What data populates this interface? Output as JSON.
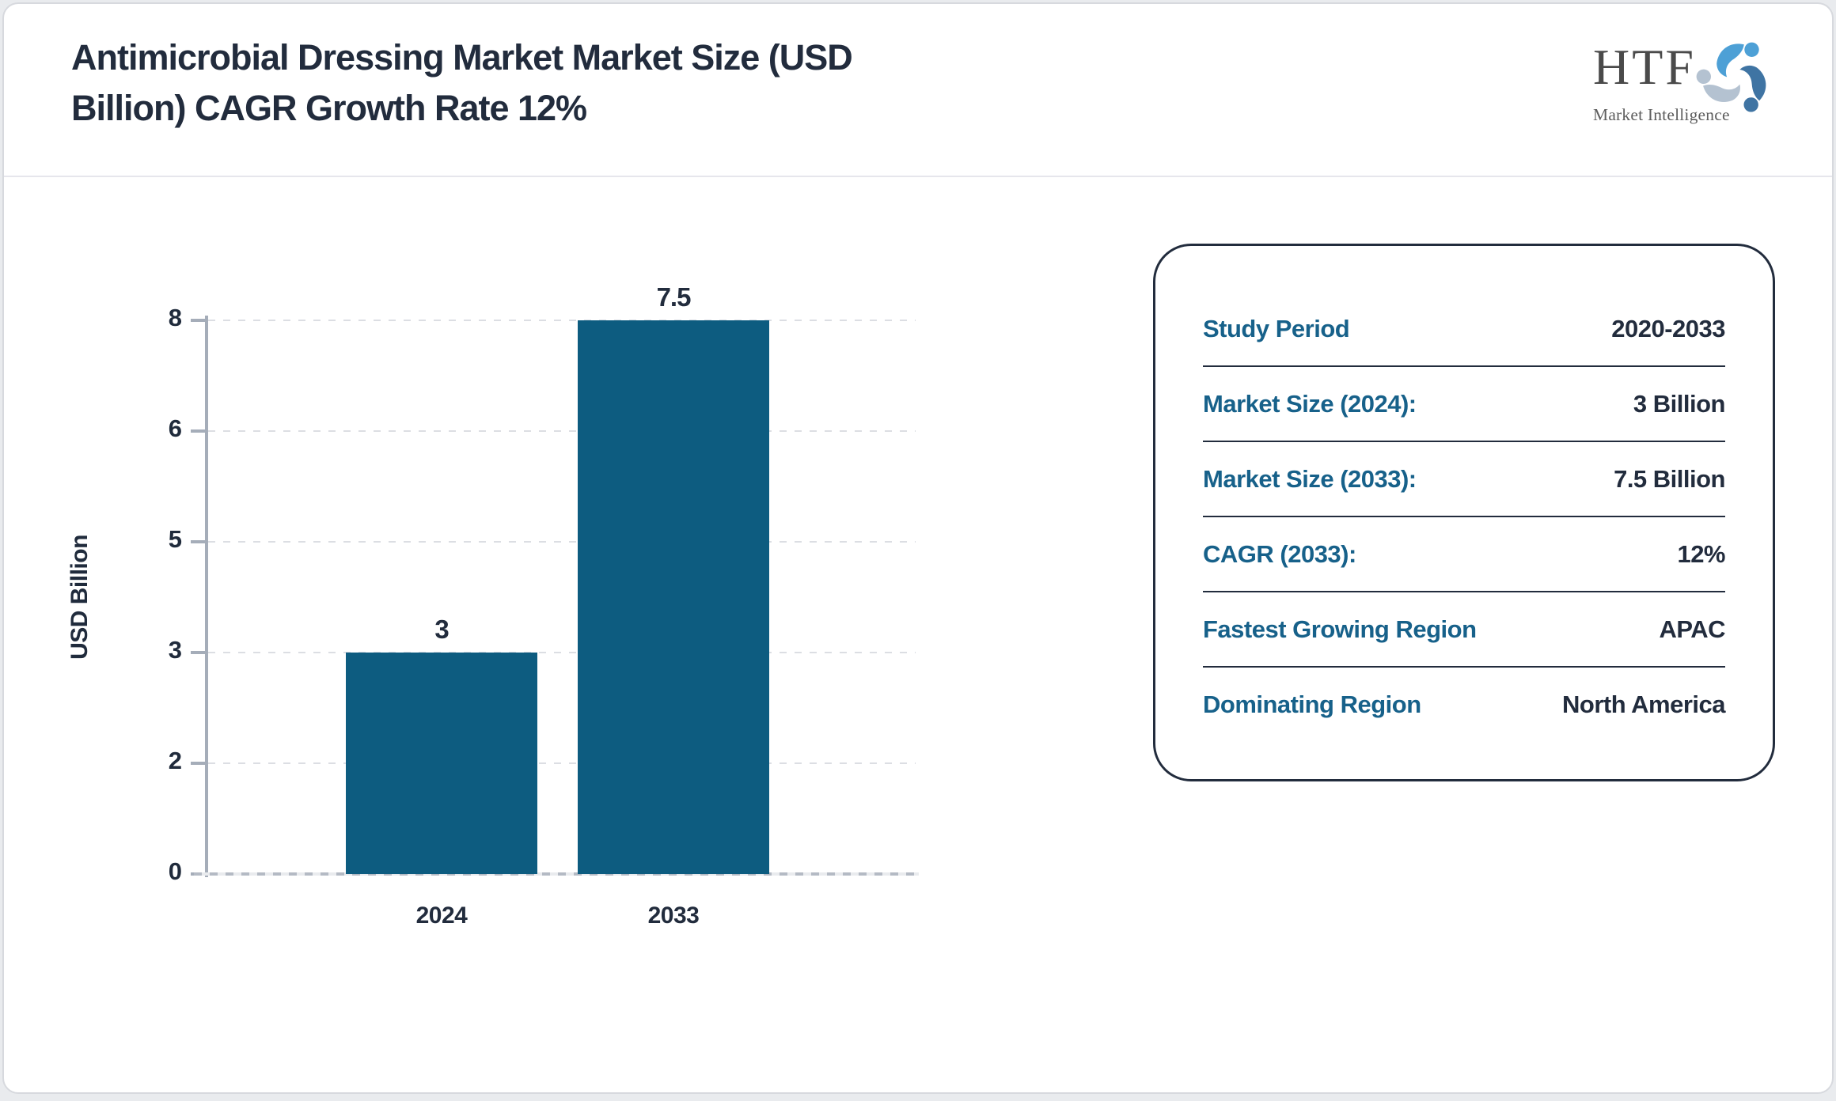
{
  "header": {
    "title_lines": [
      "Antimicrobial Dressing Market Market Size (USD",
      "Billion) CAGR Growth Rate 12%"
    ]
  },
  "logo": {
    "name": "HTF",
    "tagline": "Market Intelligence"
  },
  "chart_data": {
    "type": "bar",
    "title": "Antimicrobial Dressing Market Market Size (USD Billion) CAGR Growth Rate 12%",
    "categories": [
      "2024",
      "2033"
    ],
    "values": [
      3,
      7.5
    ],
    "data_labels": [
      "3",
      "7.5"
    ],
    "xlabel": "",
    "ylabel": "USD Billion",
    "ytick_labels": [
      "0",
      "2",
      "3",
      "5",
      "6",
      "8"
    ],
    "ylim": [
      0,
      7.5
    ],
    "grid": "horizontal-dashed",
    "legend": "none",
    "bar_color": "#0d5c80"
  },
  "info_panel": {
    "rows": [
      {
        "label": "Study Period",
        "value": "2020-2033"
      },
      {
        "label": "Market Size (2024):",
        "value": "3 Billion"
      },
      {
        "label": "Market Size (2033):",
        "value": "7.5 Billion"
      },
      {
        "label": "CAGR (2033):",
        "value": "12%"
      },
      {
        "label": "Fastest Growing Region",
        "value": "APAC"
      },
      {
        "label": "Dominating Region",
        "value": "North America"
      }
    ]
  },
  "colors": {
    "bar": "#0d5c80",
    "label_teal": "#17618a",
    "text_navy": "#222c3d",
    "axis_gray": "#a5adb9",
    "swirl_light_blue": "#4da0d6",
    "swirl_steel_blue": "#3f74a3",
    "swirl_pale_blue": "#b4c2d1"
  }
}
